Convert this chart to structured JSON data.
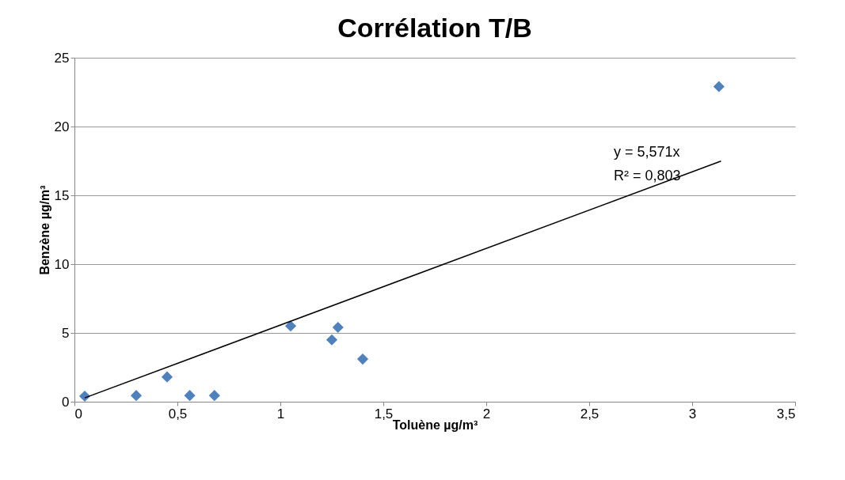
{
  "chart_data": {
    "type": "scatter",
    "title": "Corrélation T/B",
    "xlabel": "Toluène µg/m³",
    "ylabel": "Benzène µg/m³",
    "series": [
      {
        "color": "#4f81bd",
        "marker": "diamond",
        "x": [
          0.05,
          0.3,
          0.45,
          0.56,
          0.68,
          1.05,
          1.25,
          1.28,
          1.4,
          3.13
        ],
        "values": [
          0.4,
          0.45,
          1.8,
          0.45,
          0.45,
          5.5,
          4.5,
          5.4,
          3.1,
          22.9
        ]
      },
      {
        "type": "line",
        "color": "#000000",
        "x": [
          0.05,
          3.14
        ],
        "values": [
          0.28,
          17.49
        ]
      }
    ],
    "annotations": [
      "y = 5,571x",
      "R² = 0,803"
    ],
    "xlim": [
      0,
      3.5
    ],
    "xticks": [
      0,
      {
        "value": 0.5,
        "label": "0,5"
      },
      1,
      {
        "value": 1.5,
        "label": "1,5"
      },
      2,
      {
        "value": 2.5,
        "label": "2,5"
      },
      3,
      {
        "value": 3.5,
        "label": "3,5"
      }
    ],
    "ylim": [
      0,
      25
    ],
    "yticks": [
      0,
      5,
      10,
      15,
      20,
      25
    ],
    "grid": "y"
  }
}
